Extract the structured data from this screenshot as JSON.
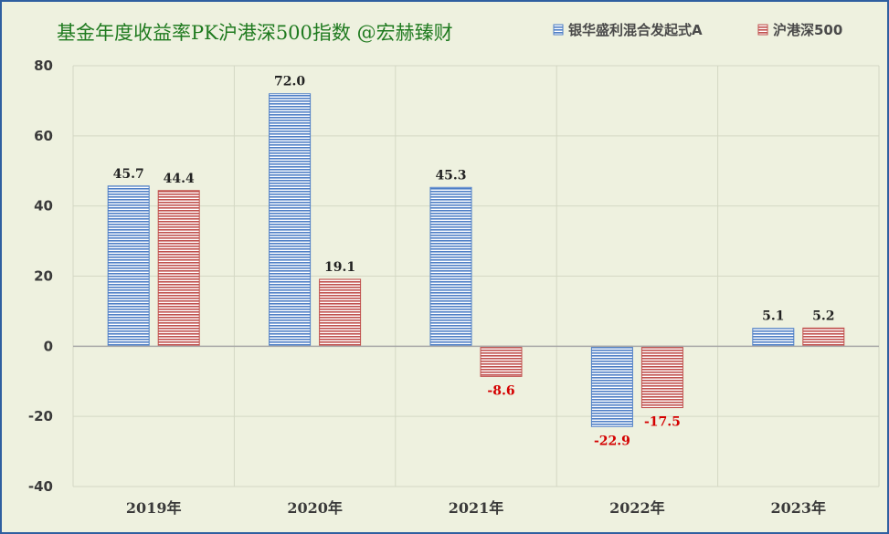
{
  "chart_data": {
    "type": "bar",
    "title": "基金年度收益率PK沪港深500指数 @宏赫臻财",
    "categories": [
      "2019年",
      "2020年",
      "2021年",
      "2022年",
      "2023年"
    ],
    "series": [
      {
        "name": "银华盛利混合发起式A",
        "values": [
          45.7,
          72.0,
          45.3,
          -22.9,
          5.1
        ],
        "color": "#4f7fc6",
        "labels": [
          "45.7",
          "72.0",
          "45.3",
          "-22.9",
          "5.1"
        ]
      },
      {
        "name": "沪港深500",
        "values": [
          44.4,
          19.1,
          -8.6,
          -17.5,
          5.2
        ],
        "color": "#c0504d",
        "labels": [
          "44.4",
          "19.1",
          "-8.6",
          "-17.5",
          "5.2"
        ]
      }
    ],
    "ylim": [
      -40,
      80
    ],
    "yticks": [
      80,
      60,
      40,
      20,
      0,
      -20,
      -40
    ],
    "ytick_labels": [
      "80",
      "60",
      "40",
      "20",
      "0",
      "-20",
      "-40"
    ],
    "grid": true,
    "legend_position": "top-right",
    "bar_style": "horizontal-stripes",
    "background_color": "#eef1df"
  }
}
